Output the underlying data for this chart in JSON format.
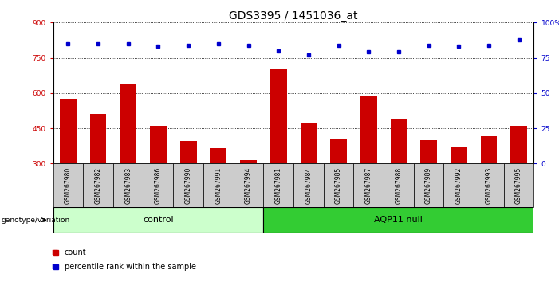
{
  "title": "GDS3395 / 1451036_at",
  "samples": [
    "GSM267980",
    "GSM267982",
    "GSM267983",
    "GSM267986",
    "GSM267990",
    "GSM267991",
    "GSM267994",
    "GSM267981",
    "GSM267984",
    "GSM267985",
    "GSM267987",
    "GSM267988",
    "GSM267989",
    "GSM267992",
    "GSM267993",
    "GSM267995"
  ],
  "bar_values": [
    575,
    510,
    635,
    460,
    395,
    365,
    315,
    700,
    470,
    405,
    590,
    490,
    400,
    370,
    415,
    460
  ],
  "percentile_values": [
    85,
    85,
    85,
    83,
    84,
    85,
    84,
    80,
    77,
    84,
    79,
    79,
    84,
    83,
    84,
    88
  ],
  "bar_color": "#cc0000",
  "dot_color": "#0000cc",
  "ylim_left": [
    300,
    900
  ],
  "ylim_right": [
    0,
    100
  ],
  "yticks_left": [
    300,
    450,
    600,
    750,
    900
  ],
  "yticks_right": [
    0,
    25,
    50,
    75,
    100
  ],
  "control_count": 7,
  "aqp11_count": 9,
  "control_label": "control",
  "aqp11_label": "AQP11 null",
  "genotype_label": "genotype/variation",
  "legend_count": "count",
  "legend_pct": "percentile rank within the sample",
  "control_color": "#ccffcc",
  "aqp11_color": "#33cc33",
  "bg_color": "#cccccc",
  "title_fontsize": 10,
  "tick_fontsize": 6.5,
  "label_fontsize": 7.5
}
